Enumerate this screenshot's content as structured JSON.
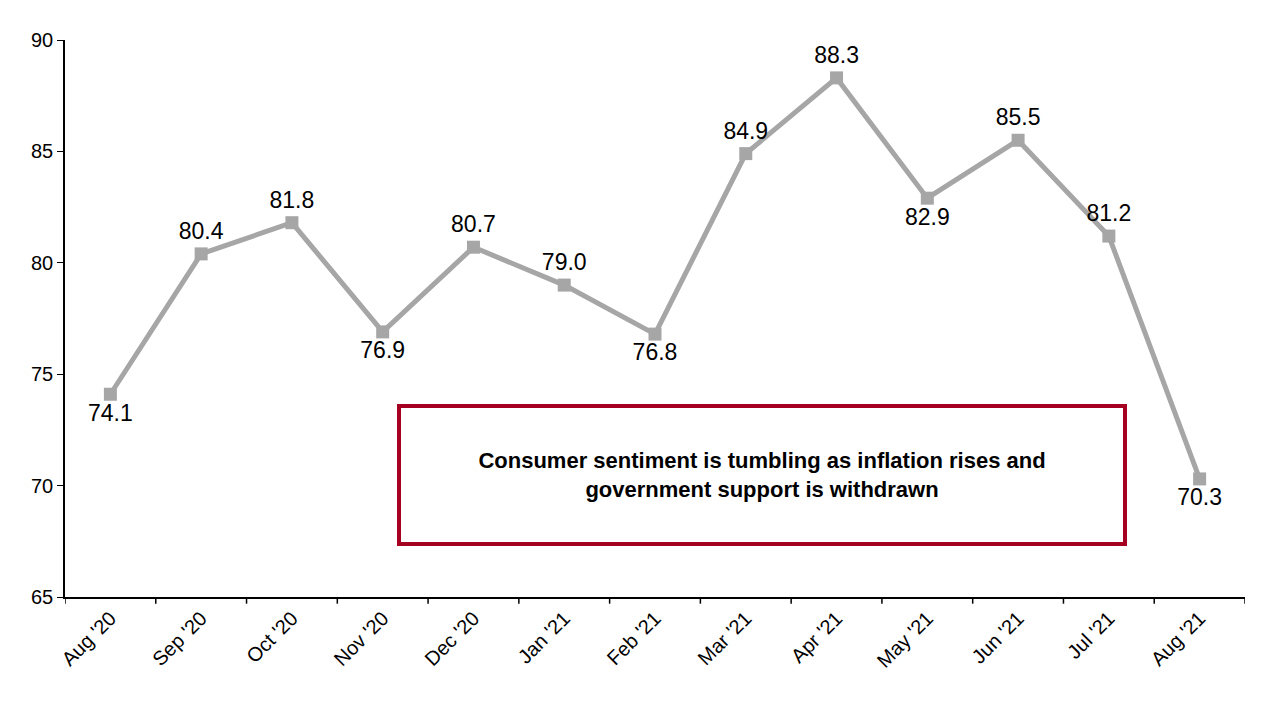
{
  "chart_data": {
    "type": "line",
    "categories": [
      "Aug '20",
      "Sep '20",
      "Oct '20",
      "Nov '20",
      "Dec '20",
      "Jan '21",
      "Feb '21",
      "Mar '21",
      "Apr '21",
      "May '21",
      "Jun '21",
      "Jul '21",
      "Aug '21"
    ],
    "values": [
      74.1,
      80.4,
      81.8,
      76.9,
      80.7,
      79.0,
      76.8,
      84.9,
      88.3,
      82.9,
      85.5,
      81.2,
      70.3
    ],
    "value_labels": [
      "74.1",
      "80.4",
      "81.8",
      "76.9",
      "80.7",
      "79.0",
      "76.8",
      "84.9",
      "88.3",
      "82.9",
      "85.5",
      "81.2",
      "70.3"
    ],
    "color": "#a6a6a6",
    "marker": "square",
    "ylim": [
      65,
      90
    ],
    "yticks": [
      65,
      70,
      75,
      80,
      85,
      90
    ],
    "grid": false,
    "data_labels": true,
    "annotations": [
      {
        "lines": [
          "Consumer sentiment is tumbling as inflation rises and",
          "government support is withdrawn"
        ]
      }
    ]
  }
}
